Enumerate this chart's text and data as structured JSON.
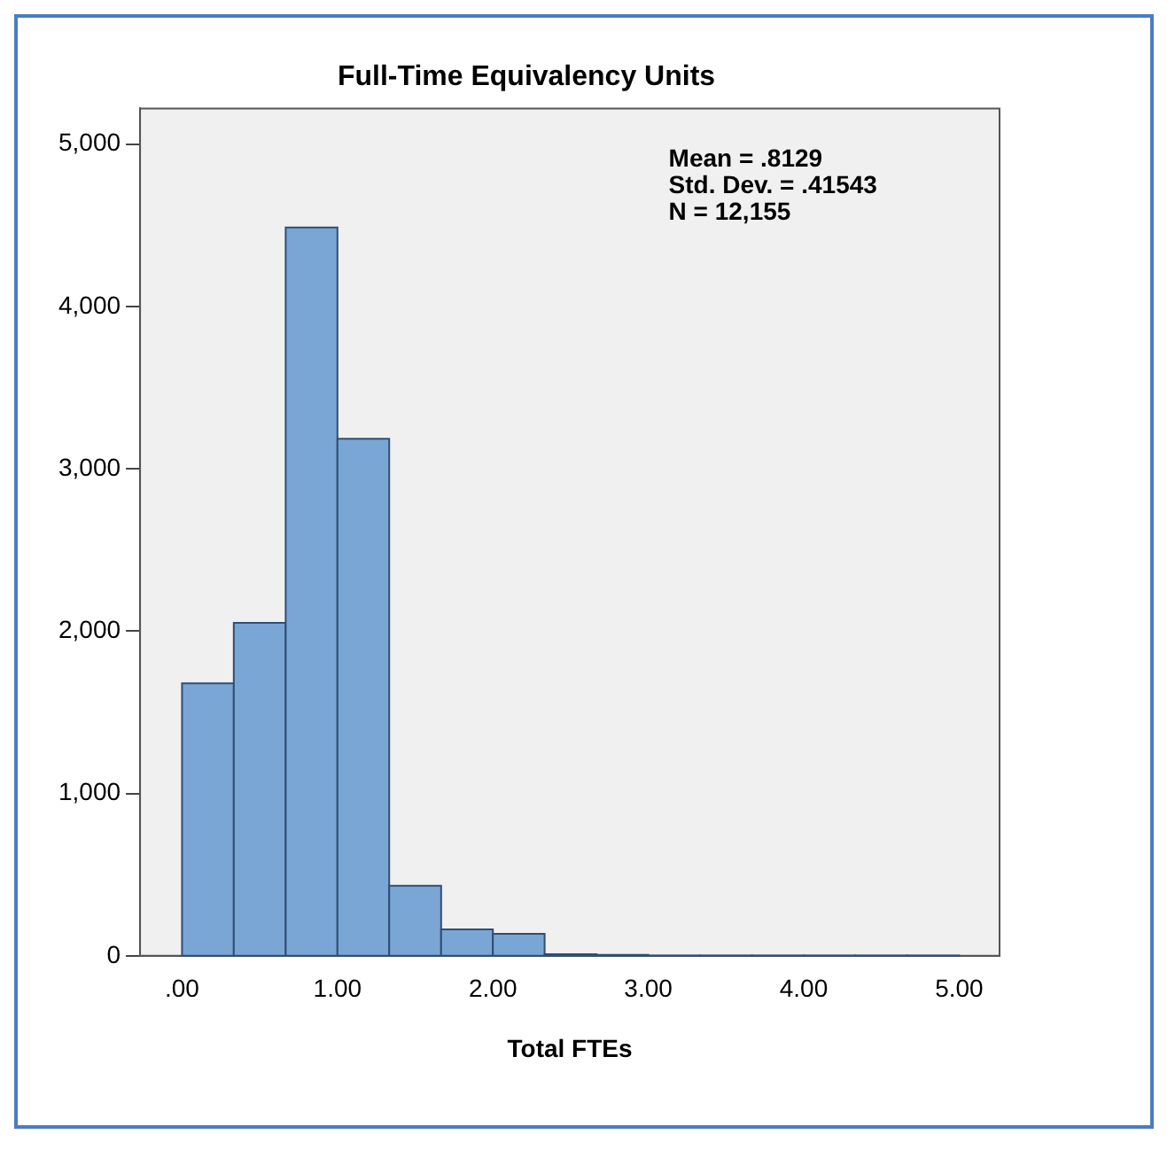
{
  "chart_data": {
    "type": "histogram",
    "title": "Full-Time Equivalency Units",
    "xlabel": "Total FTEs",
    "bins": [
      0,
      0.333,
      0.667,
      1,
      1.333,
      1.667,
      2,
      2.333,
      2.667,
      3,
      3.333,
      3.667,
      4,
      4.333,
      4.667,
      5
    ],
    "values": [
      1678,
      2051,
      4487,
      3185,
      431,
      163,
      136,
      10,
      6,
      2,
      1,
      1,
      1,
      2,
      1
    ],
    "color": "#7aa6d6",
    "xlim": [
      -0.27,
      5.26
    ],
    "ylim": [
      0,
      5220
    ],
    "xticks": [
      {
        "value": 0,
        "label": ".00"
      },
      {
        "value": 1,
        "label": "1.00"
      },
      {
        "value": 2,
        "label": "2.00"
      },
      {
        "value": 3,
        "label": "3.00"
      },
      {
        "value": 4,
        "label": "4.00"
      },
      {
        "value": 5,
        "label": "5.00"
      }
    ],
    "yticks": [
      0,
      {
        "value": 1000,
        "label": "1,000"
      },
      {
        "value": 2000,
        "label": "2,000"
      },
      {
        "value": 3000,
        "label": "3,000"
      },
      {
        "value": 4000,
        "label": "4,000"
      },
      {
        "value": 5000,
        "label": "5,000"
      }
    ],
    "annotations": [
      "Mean = .8129",
      "Std. Dev. = .41543",
      "N = 12,155"
    ],
    "grid": false,
    "legend": false
  }
}
